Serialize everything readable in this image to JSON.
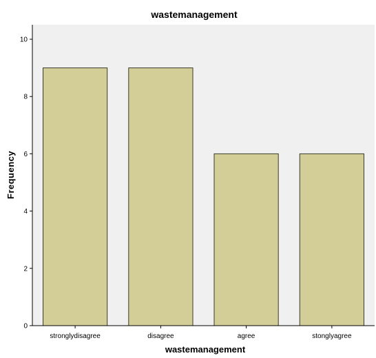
{
  "chart_data": {
    "type": "bar",
    "title": "wastemanagement",
    "xlabel": "wastemanagement",
    "ylabel": "Frequency",
    "categories": [
      "stronglydisagree",
      "disagree",
      "agree",
      "stonglyagree"
    ],
    "values": [
      9,
      9,
      6,
      6
    ],
    "ylim": [
      0,
      10
    ],
    "yticks": [
      0,
      2,
      4,
      6,
      8,
      10
    ],
    "grid": false,
    "colors": {
      "bar_fill": "#d3ce97",
      "bar_stroke": "#3a3a2a",
      "plot_background": "#f0f0f0",
      "axis": "#000000"
    }
  }
}
